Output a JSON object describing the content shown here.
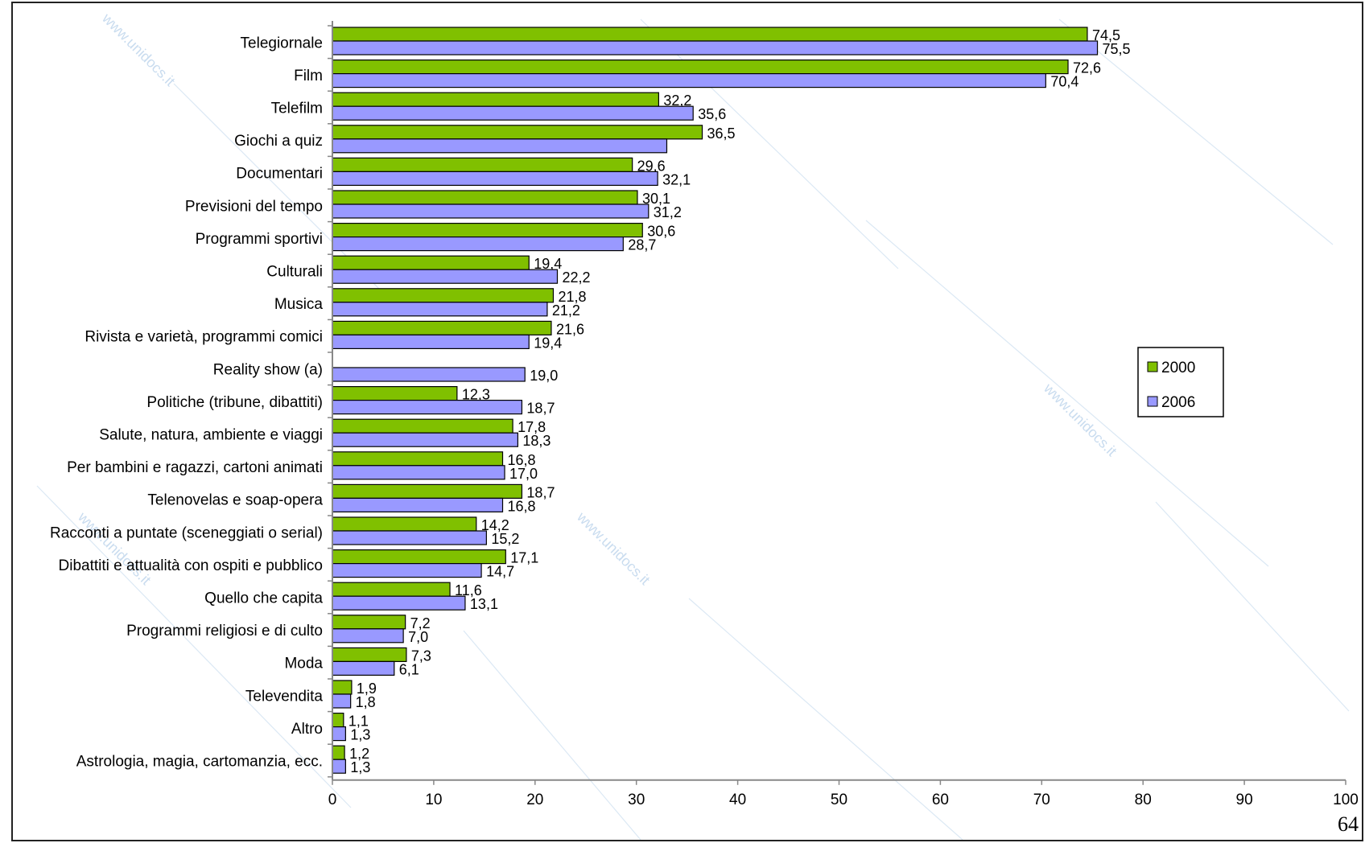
{
  "page_number": "64",
  "watermark": "www.unidocs.it",
  "chart_data": {
    "type": "bar",
    "orientation": "horizontal",
    "categories": [
      "Telegiornale",
      "Film",
      "Telefilm",
      "Giochi a quiz",
      "Documentari",
      "Previsioni del tempo",
      "Programmi sportivi",
      "Culturali",
      "Musica",
      "Rivista e varietà, programmi comici",
      "Reality show (a)",
      "Politiche (tribune, dibattiti)",
      "Salute, natura, ambiente e viaggi",
      "Per bambini e ragazzi, cartoni animati",
      "Telenovelas e soap-opera",
      "Racconti a puntate (sceneggiati o serial)",
      "Dibattiti e attualità con ospiti e pubblico",
      "Quello che capita",
      "Programmi religiosi e di culto",
      "Moda",
      "Televendita",
      "Altro",
      "Astrologia, magia, cartomanzia, ecc."
    ],
    "series": [
      {
        "name": "2000",
        "color": "#80c000",
        "values": [
          74.5,
          72.6,
          32.2,
          36.5,
          29.6,
          30.1,
          30.6,
          19.4,
          21.8,
          21.6,
          null,
          12.3,
          17.8,
          16.8,
          18.7,
          14.2,
          17.1,
          11.6,
          7.2,
          7.3,
          1.9,
          1.1,
          1.2
        ],
        "labels": [
          "74,5",
          "72,6",
          "32,2",
          "36,5",
          "29,6",
          "30,1",
          "30,6",
          "19,4",
          "21,8",
          "21,6",
          "",
          "12,3",
          "17,8",
          "16,8",
          "18,7",
          "14,2",
          "17,1",
          "11,6",
          "7,2",
          "7,3",
          "1,9",
          "1,1",
          "1,2"
        ]
      },
      {
        "name": "2006",
        "color": "#9999ff",
        "values": [
          75.5,
          70.4,
          35.6,
          33.0,
          32.1,
          31.2,
          28.7,
          22.2,
          21.2,
          19.4,
          19.0,
          18.7,
          18.3,
          17.0,
          16.8,
          15.2,
          14.7,
          13.1,
          7.0,
          6.1,
          1.8,
          1.3,
          1.3
        ],
        "labels": [
          "75,5",
          "70,4",
          "35,6",
          "",
          "32,1",
          "31,2",
          "28,7",
          "22,2",
          "21,2",
          "19,4",
          "19,0",
          "18,7",
          "18,3",
          "17,0",
          "16,8",
          "15,2",
          "14,7",
          "13,1",
          "7,0",
          "6,1",
          "1,8",
          "1,3",
          "1,3"
        ]
      }
    ],
    "xlim": [
      0,
      100
    ],
    "x_ticks": [
      0,
      10,
      20,
      30,
      40,
      50,
      60,
      70,
      80,
      90,
      100
    ],
    "legend": [
      "2000",
      "2006"
    ],
    "legend_position": "right",
    "grid": false
  }
}
